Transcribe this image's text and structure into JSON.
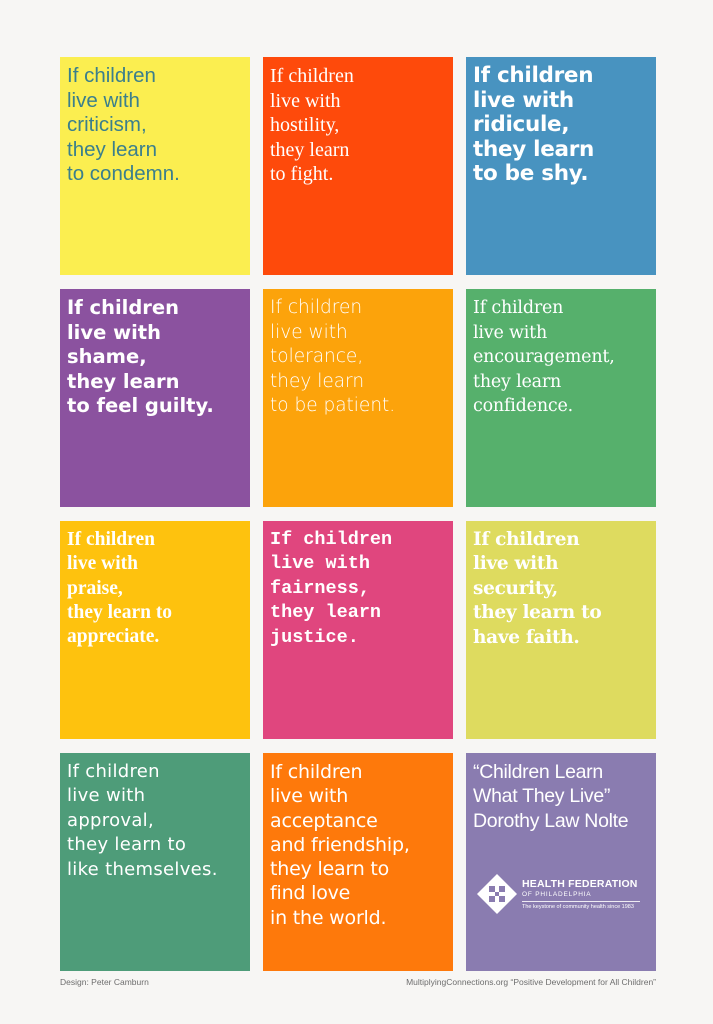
{
  "tiles": [
    {
      "text": "If children\nlive with\ncriticism,\nthey learn\nto condemn.",
      "bg": "#fbee50",
      "fg": "#3b7f8c"
    },
    {
      "text": "If children\nlive with\nhostility,\nthey learn\nto fight.",
      "bg": "#fe4a0b",
      "fg": "#ffffff"
    },
    {
      "text": "If children\nlive with\nridicule,\nthey learn\nto be shy.",
      "bg": "#4893c0",
      "fg": "#ffffff"
    },
    {
      "text": "If children\nlive with\nshame,\nthey learn\nto feel guilty.",
      "bg": "#8b529f",
      "fg": "#ffffff"
    },
    {
      "text": "If children\nlive with\ntolerance,\nthey learn\nto be patient.",
      "bg": "#fca30b",
      "fg": "#ffffff"
    },
    {
      "text": "If children\nlive with\nencouragement,\nthey learn\nconfidence.",
      "bg": "#56b06c",
      "fg": "#ffffff"
    },
    {
      "text": "If children\nlive with\npraise,\nthey learn to\nappreciate.",
      "bg": "#fec20e",
      "fg": "#ffffff"
    },
    {
      "text": "If children\nlive with\nfairness,\nthey learn\njustice.",
      "bg": "#e0467e",
      "fg": "#ffffff"
    },
    {
      "text": "If children\nlive with\nsecurity,\nthey learn to\nhave faith.",
      "bg": "#dedb5f",
      "fg": "#ffffff"
    },
    {
      "text": "If children\nlive with\napproval,\nthey learn to\nlike themselves.",
      "bg": "#4e9c79",
      "fg": "#ffffff"
    },
    {
      "text": "If children\nlive with\nacceptance\nand friendship,\nthey learn to\nfind love\nin the world.",
      "bg": "#fe790b",
      "fg": "#ffffff"
    },
    {
      "text": "“Children Learn\nWhat They Live”\nDorothy Law Nolte",
      "bg": "#8a7cb0",
      "fg": "#ffffff"
    }
  ],
  "logo": {
    "name": "HEALTH FEDERATION",
    "sub": "OF PHILADELPHIA",
    "tagline": "The keystone of community health since 1983"
  },
  "footer": {
    "left": "Design: Peter Camburn",
    "right": "MultiplyingConnections.org “Positive Development for All Children”"
  }
}
